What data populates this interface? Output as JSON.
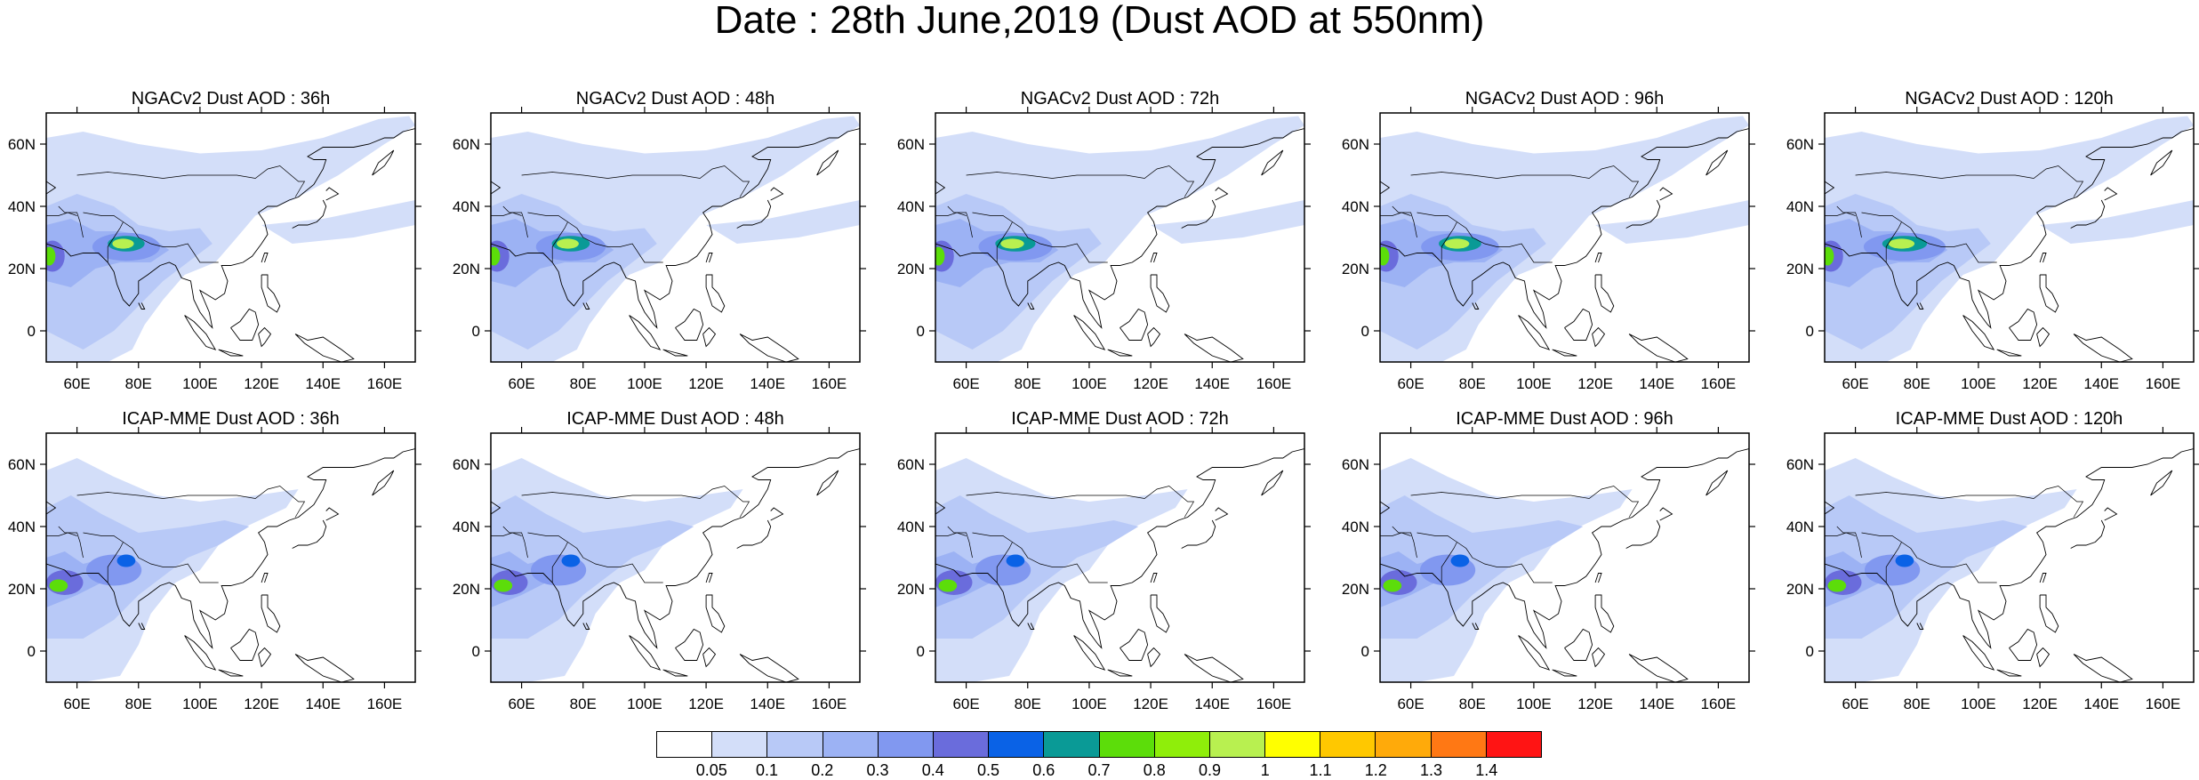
{
  "title": "Date : 28th June,2019 (Dust AOD at 550nm)",
  "map_extent": {
    "lon": [
      50,
      170
    ],
    "lat": [
      -10,
      70
    ]
  },
  "lat_ticks": [
    {
      "v": 0,
      "t": "0"
    },
    {
      "v": 20,
      "t": "20N"
    },
    {
      "v": 40,
      "t": "40N"
    },
    {
      "v": 60,
      "t": "60N"
    }
  ],
  "lon_ticks": [
    {
      "v": 60,
      "t": "60E"
    },
    {
      "v": 80,
      "t": "80E"
    },
    {
      "v": 100,
      "t": "100E"
    },
    {
      "v": 120,
      "t": "120E"
    },
    {
      "v": 140,
      "t": "140E"
    },
    {
      "v": 160,
      "t": "160E"
    }
  ],
  "panels": [
    {
      "title": "NGACv2 Dust AOD : 36h",
      "model": "ngac",
      "lead": 36
    },
    {
      "title": "NGACv2 Dust AOD : 48h",
      "model": "ngac",
      "lead": 48
    },
    {
      "title": "NGACv2 Dust AOD : 72h",
      "model": "ngac",
      "lead": 72
    },
    {
      "title": "NGACv2 Dust AOD : 96h",
      "model": "ngac",
      "lead": 96
    },
    {
      "title": "NGACv2 Dust AOD : 120h",
      "model": "ngac",
      "lead": 120
    },
    {
      "title": "ICAP-MME Dust AOD : 36h",
      "model": "icap",
      "lead": 36
    },
    {
      "title": "ICAP-MME Dust AOD : 48h",
      "model": "icap",
      "lead": 48
    },
    {
      "title": "ICAP-MME Dust AOD : 72h",
      "model": "icap",
      "lead": 72
    },
    {
      "title": "ICAP-MME Dust AOD : 96h",
      "model": "icap",
      "lead": 96
    },
    {
      "title": "ICAP-MME Dust AOD : 120h",
      "model": "icap",
      "lead": 120
    }
  ],
  "colorbar": {
    "colors": [
      "#ffffff",
      "#d3def9",
      "#b8c9f7",
      "#9cb2f4",
      "#8198f0",
      "#6a6cdc",
      "#0a62e6",
      "#0a9a96",
      "#5cdd0a",
      "#8fee0a",
      "#b8f050",
      "#ffff00",
      "#ffc800",
      "#ffaa0a",
      "#ff7814",
      "#ff1414"
    ],
    "labels": [
      "0.05",
      "0.1",
      "0.2",
      "0.3",
      "0.4",
      "0.5",
      "0.6",
      "0.7",
      "0.8",
      "0.9",
      "1",
      "1.1",
      "1.2",
      "1.3",
      "1.4"
    ]
  }
}
